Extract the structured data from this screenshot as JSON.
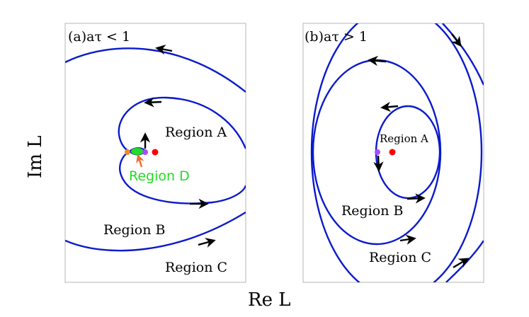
{
  "axes": {
    "x_label": "Re L",
    "y_label": "Im L"
  },
  "panel_a": {
    "title": "(a)aτ < 1",
    "regions": {
      "a": "Region A",
      "b": "Region B",
      "c": "Region C",
      "d": "Region D"
    }
  },
  "panel_b": {
    "title": "(b)aτ > 1",
    "regions": {
      "a": "Region A",
      "b": "Region B",
      "c": "Region C"
    }
  },
  "colors": {
    "curve": "#0a1acc",
    "fixed_point": "#ff0000",
    "marker_purple": "#a64dff",
    "marker_orange": "#f08a1e",
    "region_d": "#22dd22",
    "pointer_orange": "#f26a2e"
  }
}
